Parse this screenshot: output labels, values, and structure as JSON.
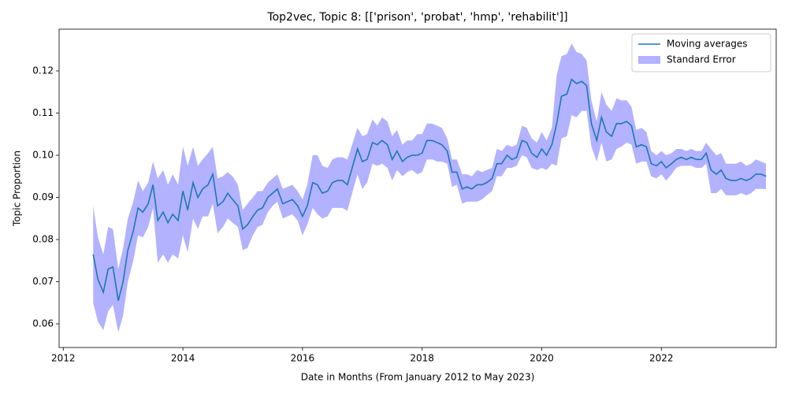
{
  "chart_data": {
    "type": "line",
    "title": "Top2vec, Topic 8: [['prison', 'probat', 'hmp', 'rehabilit']]",
    "xlabel": "Date in Months (From January 2012 to May 2023)",
    "ylabel": "Topic Proportion",
    "legend": "upper right",
    "x": [
      2012.5,
      2012.58,
      2012.67,
      2012.75,
      2012.83,
      2012.92,
      2013,
      2013.08,
      2013.17,
      2013.25,
      2013.33,
      2013.42,
      2013.5,
      2013.58,
      2013.67,
      2013.75,
      2013.83,
      2013.92,
      2014,
      2014.08,
      2014.17,
      2014.25,
      2014.33,
      2014.42,
      2014.5,
      2014.58,
      2014.67,
      2014.75,
      2014.83,
      2014.92,
      2015,
      2015.08,
      2015.17,
      2015.25,
      2015.33,
      2015.42,
      2015.5,
      2015.58,
      2015.67,
      2015.75,
      2015.83,
      2015.92,
      2016,
      2016.08,
      2016.17,
      2016.25,
      2016.33,
      2016.42,
      2016.5,
      2016.58,
      2016.67,
      2016.75,
      2016.83,
      2016.92,
      2017,
      2017.08,
      2017.17,
      2017.25,
      2017.33,
      2017.42,
      2017.5,
      2017.58,
      2017.67,
      2017.75,
      2017.83,
      2017.92,
      2018,
      2018.08,
      2018.17,
      2018.25,
      2018.33,
      2018.42,
      2018.5,
      2018.58,
      2018.67,
      2018.75,
      2018.83,
      2018.92,
      2019,
      2019.08,
      2019.17,
      2019.25,
      2019.33,
      2019.42,
      2019.5,
      2019.58,
      2019.67,
      2019.75,
      2019.83,
      2019.92,
      2020,
      2020.08,
      2020.17,
      2020.25,
      2020.33,
      2020.42,
      2020.5,
      2020.58,
      2020.67,
      2020.75,
      2020.83,
      2020.92,
      2021,
      2021.08,
      2021.17,
      2021.25,
      2021.33,
      2021.42,
      2021.5,
      2021.58,
      2021.67,
      2021.75,
      2021.83,
      2021.92,
      2022,
      2022.08,
      2022.17,
      2022.25,
      2022.33,
      2022.42,
      2022.5,
      2022.58,
      2022.67,
      2022.75,
      2022.83,
      2022.92,
      2023,
      2023.08,
      2023.17,
      2023.25,
      2023.33,
      2023.42,
      2023.5,
      2023.58,
      2023.67,
      2023.75
    ],
    "series": [
      {
        "name": "Moving averages",
        "color": "#1f77b4",
        "values": [
          0.0765,
          0.0705,
          0.0675,
          0.073,
          0.0735,
          0.0655,
          0.07,
          0.0775,
          0.082,
          0.0875,
          0.0865,
          0.0885,
          0.093,
          0.0845,
          0.0865,
          0.084,
          0.086,
          0.0845,
          0.0915,
          0.087,
          0.0935,
          0.09,
          0.092,
          0.093,
          0.0955,
          0.088,
          0.089,
          0.091,
          0.0895,
          0.088,
          0.0825,
          0.0835,
          0.0855,
          0.087,
          0.0875,
          0.09,
          0.091,
          0.092,
          0.0885,
          0.089,
          0.0895,
          0.088,
          0.0855,
          0.088,
          0.0935,
          0.093,
          0.091,
          0.0915,
          0.0935,
          0.094,
          0.094,
          0.093,
          0.097,
          0.1015,
          0.0985,
          0.099,
          0.103,
          0.1025,
          0.1035,
          0.1025,
          0.099,
          0.101,
          0.0985,
          0.0995,
          0.1,
          0.1,
          0.1005,
          0.1035,
          0.1035,
          0.103,
          0.1025,
          0.101,
          0.096,
          0.096,
          0.092,
          0.0925,
          0.092,
          0.093,
          0.093,
          0.0935,
          0.0945,
          0.098,
          0.098,
          0.1,
          0.099,
          0.0995,
          0.1035,
          0.103,
          0.1005,
          0.0995,
          0.1015,
          0.1,
          0.1025,
          0.1075,
          0.114,
          0.1145,
          0.118,
          0.117,
          0.1175,
          0.1165,
          0.1075,
          0.1035,
          0.109,
          0.1055,
          0.1045,
          0.1075,
          0.1075,
          0.108,
          0.107,
          0.102,
          0.1025,
          0.102,
          0.098,
          0.0975,
          0.0985,
          0.097,
          0.098,
          0.099,
          0.0995,
          0.099,
          0.0995,
          0.099,
          0.099,
          0.1005,
          0.0965,
          0.0955,
          0.0965,
          0.0945,
          0.094,
          0.094,
          0.0945,
          0.094,
          0.0945,
          0.0955,
          0.0955,
          0.095
        ]
      }
    ],
    "band": {
      "name": "Standard Error",
      "color": "#0000ff",
      "alpha": 0.3,
      "lower": [
        0.065,
        0.0605,
        0.0585,
        0.063,
        0.0645,
        0.058,
        0.062,
        0.07,
        0.075,
        0.081,
        0.0805,
        0.083,
        0.0875,
        0.0745,
        0.0765,
        0.0745,
        0.0765,
        0.0755,
        0.081,
        0.077,
        0.085,
        0.0825,
        0.0855,
        0.0855,
        0.0885,
        0.0815,
        0.083,
        0.085,
        0.084,
        0.083,
        0.0775,
        0.078,
        0.081,
        0.083,
        0.0835,
        0.0865,
        0.088,
        0.089,
        0.085,
        0.0855,
        0.086,
        0.0845,
        0.081,
        0.0835,
        0.0875,
        0.086,
        0.085,
        0.0855,
        0.0875,
        0.0875,
        0.0875,
        0.0868,
        0.091,
        0.0955,
        0.092,
        0.0935,
        0.098,
        0.0975,
        0.098,
        0.097,
        0.094,
        0.0965,
        0.095,
        0.096,
        0.0965,
        0.0955,
        0.096,
        0.099,
        0.099,
        0.0985,
        0.0985,
        0.098,
        0.0925,
        0.093,
        0.0885,
        0.089,
        0.089,
        0.089,
        0.0895,
        0.0905,
        0.0915,
        0.095,
        0.095,
        0.097,
        0.097,
        0.0975,
        0.1,
        0.0995,
        0.097,
        0.0965,
        0.097,
        0.0965,
        0.098,
        0.0975,
        0.104,
        0.1045,
        0.1095,
        0.109,
        0.1105,
        0.1105,
        0.102,
        0.0985,
        0.103,
        0.0985,
        0.099,
        0.1015,
        0.102,
        0.103,
        0.1025,
        0.098,
        0.0985,
        0.0985,
        0.095,
        0.0945,
        0.0955,
        0.094,
        0.0955,
        0.097,
        0.0975,
        0.0975,
        0.0975,
        0.097,
        0.097,
        0.098,
        0.091,
        0.091,
        0.092,
        0.0905,
        0.0905,
        0.0905,
        0.091,
        0.0905,
        0.091,
        0.092,
        0.092,
        0.092
      ],
      "upper": [
        0.088,
        0.0805,
        0.0765,
        0.083,
        0.0825,
        0.073,
        0.078,
        0.085,
        0.089,
        0.094,
        0.0915,
        0.0935,
        0.0985,
        0.0945,
        0.0965,
        0.093,
        0.0955,
        0.093,
        0.102,
        0.0975,
        0.102,
        0.0975,
        0.099,
        0.1005,
        0.102,
        0.0945,
        0.095,
        0.096,
        0.095,
        0.093,
        0.087,
        0.0885,
        0.09,
        0.0915,
        0.0915,
        0.0935,
        0.0945,
        0.0955,
        0.092,
        0.0925,
        0.093,
        0.0915,
        0.0895,
        0.093,
        0.1,
        0.1,
        0.0975,
        0.097,
        0.099,
        0.0995,
        0.0995,
        0.099,
        0.1025,
        0.1065,
        0.1045,
        0.105,
        0.1085,
        0.107,
        0.109,
        0.108,
        0.1045,
        0.106,
        0.1025,
        0.1035,
        0.1035,
        0.105,
        0.105,
        0.1075,
        0.1075,
        0.107,
        0.1065,
        0.104,
        0.099,
        0.099,
        0.0955,
        0.0955,
        0.095,
        0.0965,
        0.096,
        0.0965,
        0.097,
        0.1015,
        0.101,
        0.1025,
        0.102,
        0.1025,
        0.107,
        0.1065,
        0.104,
        0.103,
        0.1055,
        0.1035,
        0.1065,
        0.119,
        0.1235,
        0.124,
        0.1265,
        0.1245,
        0.124,
        0.1225,
        0.113,
        0.108,
        0.115,
        0.112,
        0.1105,
        0.1135,
        0.113,
        0.113,
        0.1115,
        0.106,
        0.1065,
        0.1055,
        0.101,
        0.1,
        0.101,
        0.1,
        0.1005,
        0.1015,
        0.1015,
        0.101,
        0.1015,
        0.101,
        0.101,
        0.103,
        0.1015,
        0.1,
        0.1005,
        0.098,
        0.098,
        0.098,
        0.0985,
        0.0975,
        0.098,
        0.099,
        0.0985,
        0.098
      ]
    },
    "xlim": [
      2011.93,
      2023.92
    ],
    "ylim": [
      0.0544,
      0.1299
    ],
    "xticks": [
      2012,
      2014,
      2016,
      2018,
      2020,
      2022
    ],
    "yticks": [
      0.06,
      0.07,
      0.08,
      0.09,
      {
        "value": 0.1,
        "label": "0.10"
      },
      0.11,
      0.12
    ]
  }
}
